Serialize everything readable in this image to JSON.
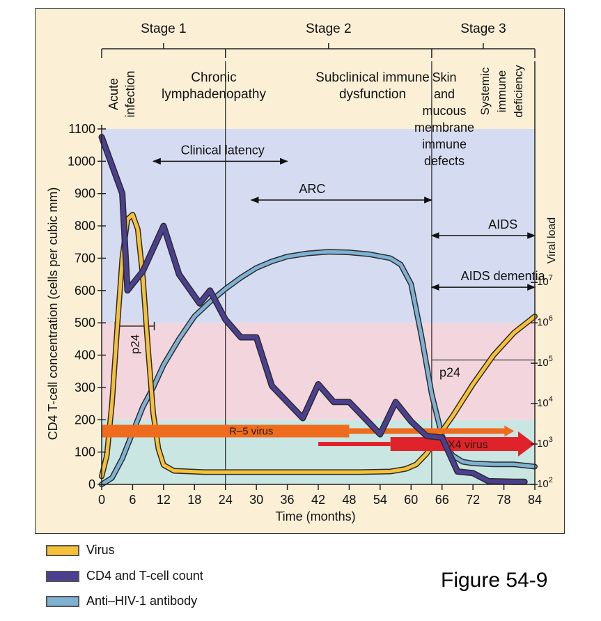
{
  "chart_data": {
    "type": "line",
    "xlabel": "Time (months)",
    "ylabel": "CD4 T-cell concentration (cells per cubic mm)",
    "y2label": "Viral load",
    "xlim": [
      0,
      84
    ],
    "ylim": [
      0,
      1100
    ],
    "x_ticks": [
      0,
      6,
      12,
      18,
      24,
      30,
      36,
      42,
      48,
      54,
      60,
      66,
      72,
      78,
      84
    ],
    "y_ticks": [
      0,
      100,
      200,
      300,
      400,
      500,
      600,
      700,
      800,
      900,
      1000,
      1100
    ],
    "y2_ticks": [
      {
        "label": "10",
        "exp": "2",
        "y": 0
      },
      {
        "label": "10",
        "exp": "3",
        "y": 125
      },
      {
        "label": "10",
        "exp": "4",
        "y": 250
      },
      {
        "label": "10",
        "exp": "5",
        "y": 375
      },
      {
        "label": "10",
        "exp": "6",
        "y": 500
      },
      {
        "label": "10",
        "exp": "7",
        "y": 625
      }
    ],
    "bands": [
      {
        "from": 0,
        "to": 200,
        "color": "#c9e6e3"
      },
      {
        "from": 200,
        "to": 500,
        "color": "#f3d6dd"
      },
      {
        "from": 500,
        "to": 1100,
        "color": "#d5dcf1"
      }
    ],
    "series": [
      {
        "name": "Virus",
        "color": "#f7c137",
        "x": [
          0,
          1,
          2,
          3,
          4,
          5,
          6,
          7,
          8,
          9,
          10,
          11,
          12,
          14,
          20,
          30,
          40,
          50,
          56,
          59,
          61,
          63,
          65,
          66,
          68,
          72,
          76,
          80,
          84
        ],
        "y": [
          25,
          90,
          250,
          480,
          700,
          820,
          835,
          790,
          640,
          420,
          220,
          110,
          60,
          42,
          38,
          38,
          38,
          38,
          40,
          48,
          62,
          95,
          145,
          165,
          210,
          310,
          400,
          470,
          520
        ]
      },
      {
        "name": "CD4 and T-cell count",
        "color": "#4b3f8f",
        "x": [
          0,
          4,
          5,
          8,
          12,
          15,
          19,
          21,
          24,
          27,
          30,
          33,
          39,
          42,
          45,
          48,
          54,
          57,
          60,
          63,
          66,
          69,
          72,
          75,
          80,
          82
        ],
        "y": [
          1075,
          900,
          600,
          660,
          800,
          650,
          560,
          600,
          510,
          455,
          455,
          305,
          205,
          310,
          255,
          255,
          155,
          255,
          195,
          150,
          145,
          40,
          35,
          10,
          8,
          8
        ]
      },
      {
        "name": "Anti–HIV-1 antibody",
        "color": "#7fb1d2",
        "x": [
          0,
          2,
          4,
          6,
          8,
          10,
          12,
          15,
          18,
          21,
          24,
          27,
          30,
          33,
          36,
          40,
          44,
          48,
          52,
          56,
          58,
          60,
          62,
          64,
          66,
          68,
          70,
          72,
          76,
          80,
          84
        ],
        "y": [
          0,
          20,
          80,
          160,
          240,
          300,
          370,
          450,
          520,
          565,
          605,
          640,
          670,
          690,
          705,
          715,
          720,
          718,
          712,
          700,
          680,
          620,
          460,
          280,
          150,
          90,
          70,
          65,
          62,
          62,
          55
        ]
      }
    ],
    "stages": [
      {
        "label": "Stage 1",
        "from": 0,
        "to": 24
      },
      {
        "label": "Stage 2",
        "from": 24,
        "to": 64
      },
      {
        "label": "Stage 3",
        "from": 64,
        "to": 84
      }
    ],
    "phases": [
      {
        "lines": [
          "Acute",
          "infection"
        ],
        "x": 3.2,
        "rotate": true
      },
      {
        "lines": [
          "Chronic",
          "lymphadenopathy"
        ],
        "x": 23,
        "rotate": false
      },
      {
        "lines": [
          "Subclinical immune",
          "dysfunction"
        ],
        "x": 44.5,
        "rotate": false
      },
      {
        "lines": [
          "Skin",
          "and",
          "mucous",
          "membrane",
          "immune",
          "defects"
        ],
        "x": 68,
        "rotate": false
      },
      {
        "lines": [
          "Systemic",
          "immune",
          "deficiency"
        ],
        "x": 77,
        "rotate": true
      }
    ],
    "ranges": [
      {
        "label": "Clinical latency",
        "from": 10,
        "to": 36,
        "y": 1000
      },
      {
        "label": "ARC",
        "from": 29,
        "to": 64,
        "y": 880
      },
      {
        "label": "AIDS",
        "from": 64,
        "to": 84,
        "y": 770
      },
      {
        "label": "AIDS dementia",
        "from": 64,
        "to": 84,
        "y": 610
      }
    ],
    "annotations": [
      {
        "text": "p24",
        "kind": "early"
      },
      {
        "text": "p24",
        "kind": "late"
      }
    ],
    "arrows": [
      {
        "label": "R–5 virus",
        "from": 0,
        "to": 80,
        "y": 165,
        "color": "#ef6b1d"
      },
      {
        "label": "X4 virus",
        "from": 42,
        "to": 84,
        "y": 125,
        "color": "#e0232b"
      }
    ]
  },
  "legend": {
    "items": [
      {
        "label": "Virus",
        "color": "#f7c137"
      },
      {
        "label": "CD4 and T-cell count",
        "color": "#4b3f8f"
      },
      {
        "label": "Anti–HIV-1 antibody",
        "color": "#7fb1d2"
      }
    ]
  },
  "figure_label": "Figure 54-9"
}
